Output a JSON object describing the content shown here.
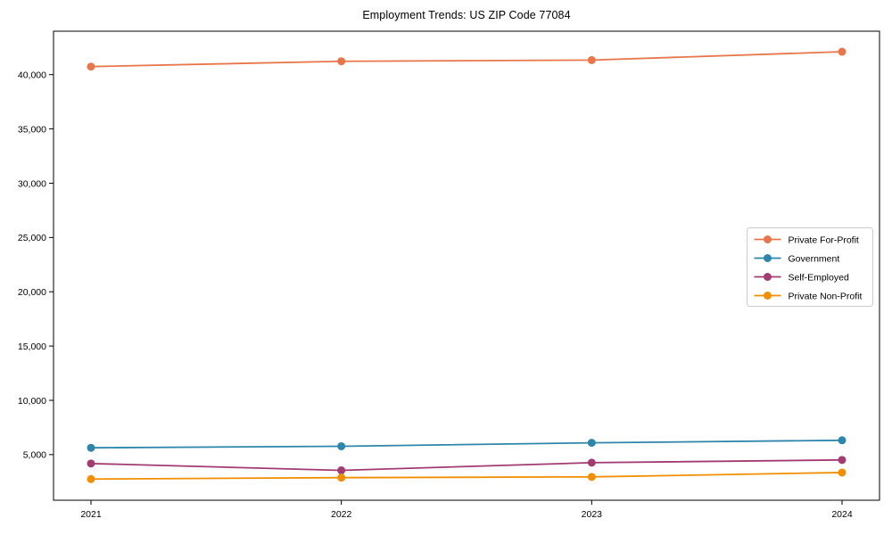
{
  "page": {
    "background": "#ffffff",
    "text_color": "#000000",
    "axis_color": "#000000",
    "legend_border_color": "#cccccc"
  },
  "chart_data": {
    "type": "line",
    "title": "Employment Trends: US ZIP Code 77084",
    "xlabel": "",
    "ylabel": "",
    "x": [
      2021,
      2022,
      2023,
      2024
    ],
    "x_tick_labels": [
      "2021",
      "2022",
      "2023",
      "2024"
    ],
    "series": [
      {
        "name": "Private For-Profit",
        "color": "#E8764A",
        "values": [
          40740,
          41230,
          41340,
          42110
        ]
      },
      {
        "name": "Government",
        "color": "#2E86AB",
        "values": [
          5630,
          5770,
          6090,
          6320
        ]
      },
      {
        "name": "Self-Employed",
        "color": "#A23B72",
        "values": [
          4180,
          3550,
          4260,
          4510
        ]
      },
      {
        "name": "Private Non-Profit",
        "color": "#F18F01",
        "values": [
          2750,
          2880,
          2950,
          3350
        ]
      }
    ],
    "ylim": [
      800,
      44000
    ],
    "ytick_values": [
      5000,
      10000,
      15000,
      20000,
      25000,
      30000,
      35000,
      40000
    ],
    "ytick_labels": [
      "5,000",
      "10,000",
      "15,000",
      "20,000",
      "25,000",
      "30,000",
      "35,000",
      "40,000"
    ],
    "grid": false,
    "marker": "circle",
    "legend": {
      "position": "right-middle",
      "entries": [
        "Private For-Profit",
        "Government",
        "Self-Employed",
        "Private Non-Profit"
      ]
    }
  }
}
